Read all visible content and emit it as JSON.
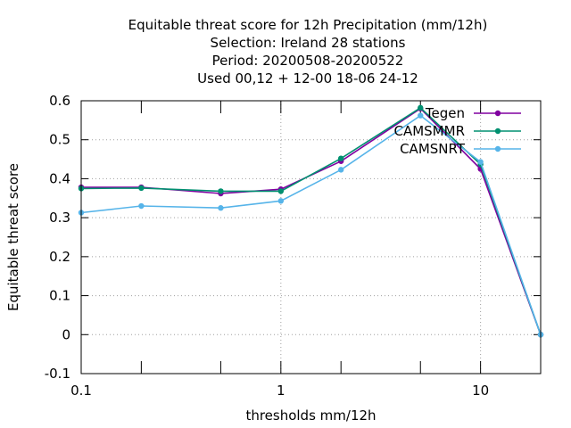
{
  "chart_data": {
    "type": "line",
    "title_lines": [
      "Equitable threat score  for 12h Precipitation (mm/12h)",
      "Selection: Ireland      28 stations",
      "Period: 20200508-20200522",
      "Used  00,12  + 12-00 18-06 24-12"
    ],
    "xlabel": "thresholds mm/12h",
    "ylabel": "Equitable threat score",
    "x_scale": "log",
    "xlim": [
      0.1,
      20
    ],
    "ylim": [
      -0.1,
      0.6
    ],
    "x_ticks": [
      {
        "value": 0.1,
        "label": "0.1"
      },
      {
        "value": 1,
        "label": "1"
      },
      {
        "value": 10,
        "label": "10"
      }
    ],
    "x_minor_ticks": [
      0.2,
      0.5,
      2,
      5,
      20
    ],
    "y_ticks": [
      {
        "value": -0.1,
        "label": "-0.1"
      },
      {
        "value": 0,
        "label": "0"
      },
      {
        "value": 0.1,
        "label": "0.1"
      },
      {
        "value": 0.2,
        "label": "0.2"
      },
      {
        "value": 0.3,
        "label": "0.3"
      },
      {
        "value": 0.4,
        "label": "0.4"
      },
      {
        "value": 0.5,
        "label": "0.5"
      },
      {
        "value": 0.6,
        "label": "0.6"
      }
    ],
    "grid": true,
    "legend_position": "top-right",
    "x": [
      0.1,
      0.2,
      0.5,
      1,
      2,
      5,
      10,
      20
    ],
    "series": [
      {
        "name": "Tegen",
        "color": "#8000a0",
        "values": [
          0.378,
          0.378,
          0.362,
          0.373,
          0.445,
          0.58,
          0.425,
          0.0
        ]
      },
      {
        "name": "CAMSMMR",
        "color": "#009070",
        "values": [
          0.375,
          0.376,
          0.368,
          0.368,
          0.452,
          0.582,
          0.437,
          0.0
        ]
      },
      {
        "name": "CAMSNRT",
        "color": "#56b4e9",
        "values": [
          0.313,
          0.33,
          0.325,
          0.343,
          0.423,
          0.562,
          0.443,
          0.0
        ]
      }
    ]
  }
}
